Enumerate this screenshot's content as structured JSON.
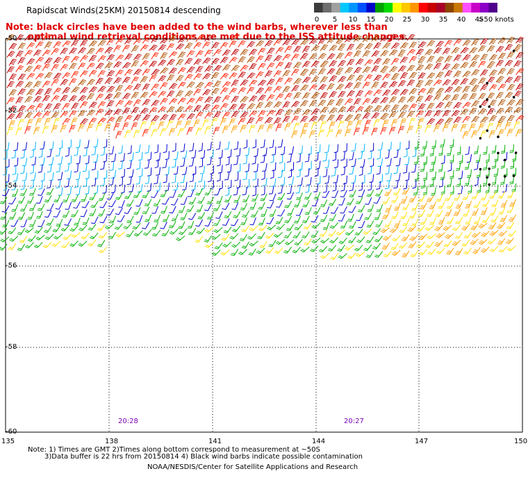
{
  "title": "Rapidscat Winds(25KM) 20150814 descending",
  "note": {
    "line1": "Note: black circles have been added to the wind barbs, wherever less than",
    "line2": "optimal wind retrieval conditions are met due to the ISS attitude changes."
  },
  "colorbar": {
    "labels": [
      "0",
      "5",
      "10",
      "15",
      "20",
      "25",
      "30",
      "35",
      "40",
      "45",
      ">50 knots"
    ],
    "colors": [
      "#3c3c3c",
      "#6e6e6e",
      "#a0a0a0",
      "#00c8ff",
      "#0096ff",
      "#0050ff",
      "#0000c8",
      "#00a000",
      "#00dc00",
      "#ffff00",
      "#ffc800",
      "#ff9600",
      "#ff0000",
      "#c80000",
      "#aa0028",
      "#8c4600",
      "#c87800",
      "#ff50ff",
      "#c800c8",
      "#8c00c8",
      "#50008c"
    ]
  },
  "axes": {
    "lat_labels": [
      "-50",
      "-52",
      "-54",
      "-56",
      "-58",
      "-60"
    ],
    "lon_labels": [
      "135",
      "138",
      "141",
      "144",
      "147",
      "150"
    ]
  },
  "times": [
    "20:28",
    "20:27"
  ],
  "footnotes": {
    "line1": "Note: 1) Times are GMT 2)Times along bottom correspond to measurement at ~50S",
    "line2": "3)Data buffer is 22 hrs from 20150814 4) Black wind barbs indicate possible contamination"
  },
  "credit": "NOAA/NESDIS/Center for Satellite Applications and Research"
}
